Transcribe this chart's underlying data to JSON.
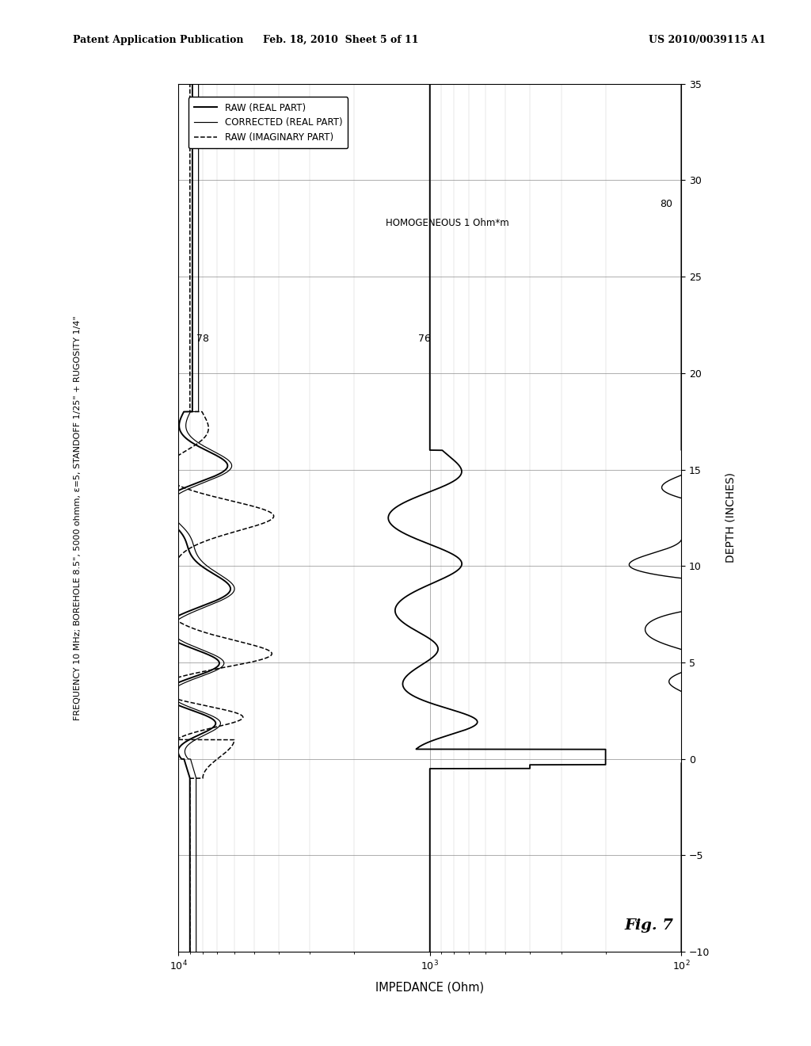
{
  "title_text": "FREQUENCY 10 MHz; BOREHOLE 8.5\", 5000 ohmm, ε=5, STANDOFF 1/25\" + RUGOSITY 1/4\"",
  "xlabel": "IMPEDANCE (Ohm)",
  "ylabel": "DEPTH (INCHES)",
  "fig_label": "Fig. 7",
  "patent_header_left": "Patent Application Publication",
  "patent_header_mid": "Feb. 18, 2010  Sheet 5 of 11",
  "patent_header_right": "US 2010/0039115 A1",
  "xlim": [
    10000,
    100
  ],
  "ylim": [
    -10,
    35
  ],
  "yticks": [
    -10,
    -5,
    0,
    5,
    10,
    15,
    20,
    25,
    30,
    35
  ],
  "homogeneous_label": "HOMOGENEOUS 1 Ohm*m",
  "label_78": "78",
  "label_76": "76",
  "label_80": "80",
  "legend_raw_real": "RAW (REAL PART)",
  "legend_corr_real": "CORRECTED (REAL PART)",
  "legend_raw_imag": "RAW (IMAGINARY PART)",
  "background_color": "#ffffff",
  "line_color": "#000000"
}
